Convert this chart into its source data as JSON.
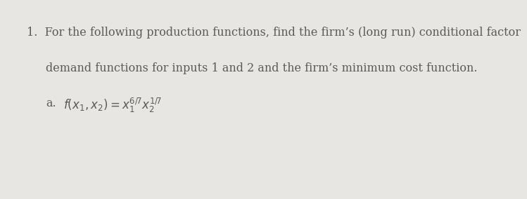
{
  "background_color": "#e8e6e3",
  "text_color": "#5a5a5a",
  "line1": "1.  For the following production functions, find the firm’s (long run) conditional factor",
  "line2": "demand functions for inputs 1 and 2 and the firm’s minimum cost function.",
  "label_a": "a.",
  "math_text": "$f(x_1, x_2) = x_1^{6/7}x_2^{1/7}$",
  "font_size_main": 11.5,
  "font_size_math": 12.0,
  "font_family": "DejaVu Serif"
}
